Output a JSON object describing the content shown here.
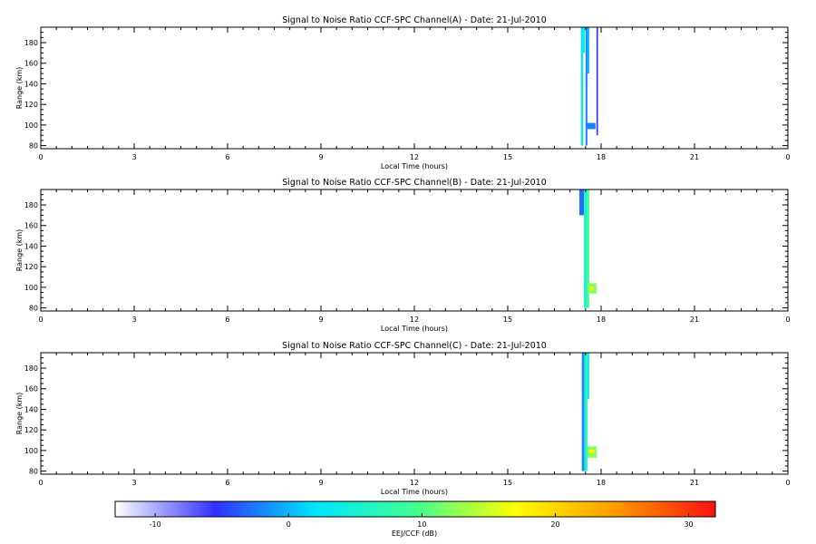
{
  "chart_data": [
    {
      "type": "heatmap",
      "title": "Signal to Noise Ratio CCF-SPC Channel(A) - Date: 21-Jul-2010",
      "xlabel": "Local Time (hours)",
      "ylabel": "Range (km)",
      "xlim": [
        0,
        24
      ],
      "ylim": [
        77,
        195
      ],
      "xticks": [
        "0",
        "3",
        "6",
        "9",
        "12",
        "15",
        "18",
        "21",
        "0"
      ],
      "yticks": [
        "80",
        "100",
        "120",
        "140",
        "160",
        "180"
      ],
      "cells": [
        {
          "x": [
            17.35,
            17.42
          ],
          "y": [
            80,
            195
          ],
          "z": 2
        },
        {
          "x": [
            17.42,
            17.48
          ],
          "y": [
            170,
            195
          ],
          "z": 3
        },
        {
          "x": [
            17.5,
            17.56
          ],
          "y": [
            80,
            195
          ],
          "z": -2
        },
        {
          "x": [
            17.56,
            17.62
          ],
          "y": [
            150,
            195
          ],
          "z": 0
        },
        {
          "x": [
            17.5,
            17.82
          ],
          "y": [
            96,
            102
          ],
          "z": -2
        },
        {
          "x": [
            17.85,
            17.9
          ],
          "y": [
            90,
            195
          ],
          "z": -5
        }
      ]
    },
    {
      "type": "heatmap",
      "title": "Signal to Noise Ratio CCF-SPC Channel(B) - Date: 21-Jul-2010",
      "xlabel": "Local Time (hours)",
      "ylabel": "Range (km)",
      "xlim": [
        0,
        24
      ],
      "ylim": [
        77,
        195
      ],
      "xticks": [
        "0",
        "3",
        "6",
        "9",
        "12",
        "15",
        "18",
        "21",
        "0"
      ],
      "yticks": [
        "80",
        "100",
        "120",
        "140",
        "160",
        "180"
      ],
      "cells": [
        {
          "x": [
            17.3,
            17.45
          ],
          "y": [
            170,
            195
          ],
          "z": -3
        },
        {
          "x": [
            17.45,
            17.55
          ],
          "y": [
            80,
            195
          ],
          "z": 5
        },
        {
          "x": [
            17.55,
            17.62
          ],
          "y": [
            80,
            195
          ],
          "z": 10
        },
        {
          "x": [
            17.55,
            17.85
          ],
          "y": [
            94,
            104
          ],
          "z": 12
        },
        {
          "x": [
            17.62,
            17.75
          ],
          "y": [
            97,
            101
          ],
          "z": 16
        }
      ]
    },
    {
      "type": "heatmap",
      "title": "Signal to Noise Ratio CCF-SPC Channel(C) - Date: 21-Jul-2010",
      "xlabel": "Local Time (hours)",
      "ylabel": "Range (km)",
      "xlim": [
        0,
        24
      ],
      "ylim": [
        77,
        195
      ],
      "xticks": [
        "0",
        "3",
        "6",
        "9",
        "12",
        "15",
        "18",
        "21",
        "0"
      ],
      "yticks": [
        "80",
        "100",
        "120",
        "140",
        "160",
        "180"
      ],
      "cells": [
        {
          "x": [
            17.38,
            17.46
          ],
          "y": [
            80,
            195
          ],
          "z": -2
        },
        {
          "x": [
            17.46,
            17.56
          ],
          "y": [
            80,
            195
          ],
          "z": 6
        },
        {
          "x": [
            17.56,
            17.62
          ],
          "y": [
            150,
            195
          ],
          "z": 4
        },
        {
          "x": [
            17.56,
            17.85
          ],
          "y": [
            93,
            104
          ],
          "z": 12
        },
        {
          "x": [
            17.62,
            17.78
          ],
          "y": [
            97,
            101
          ],
          "z": 17
        }
      ]
    }
  ],
  "colorbar": {
    "label": "EEJ/CCF (dB)",
    "range": [
      -13,
      32
    ],
    "ticks": [
      "-10",
      "0",
      "10",
      "20",
      "30"
    ],
    "tick_values": [
      -10,
      0,
      10,
      20,
      30
    ],
    "colors": [
      "#ffffff",
      "#3030ff",
      "#00e6ff",
      "#40ff90",
      "#ffff00",
      "#ff9a00",
      "#ff1010"
    ]
  }
}
